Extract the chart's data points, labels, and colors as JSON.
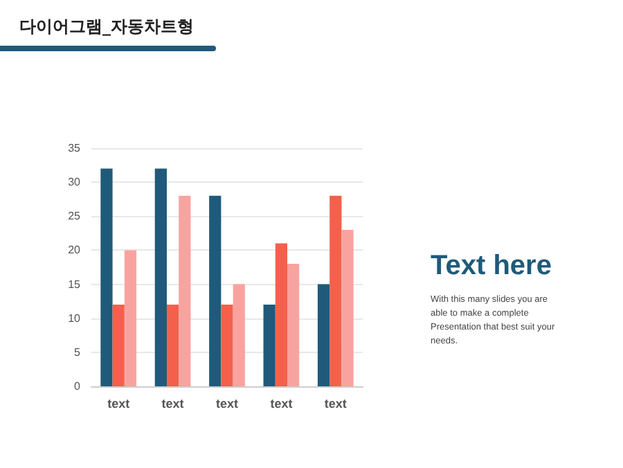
{
  "chart_data": {
    "type": "bar",
    "title": "다이어그램_자동차트형",
    "categories": [
      "text",
      "text",
      "text",
      "text",
      "text"
    ],
    "series": [
      {
        "color": "#1f5a7a",
        "values": [
          32,
          32,
          28,
          12,
          15
        ]
      },
      {
        "color": "#f4604c",
        "values": [
          12,
          12,
          12,
          21,
          28
        ]
      },
      {
        "color": "#f9a3a0",
        "values": [
          20,
          28,
          15,
          18,
          23
        ]
      }
    ],
    "ylim": [
      0,
      35
    ],
    "yticks": [
      0,
      5,
      10,
      15,
      20,
      25,
      30,
      35
    ],
    "grid": "y",
    "annotations": [
      "Text here",
      "With this many slides you are able to make a complete Presentation that best suit your needs."
    ]
  }
}
